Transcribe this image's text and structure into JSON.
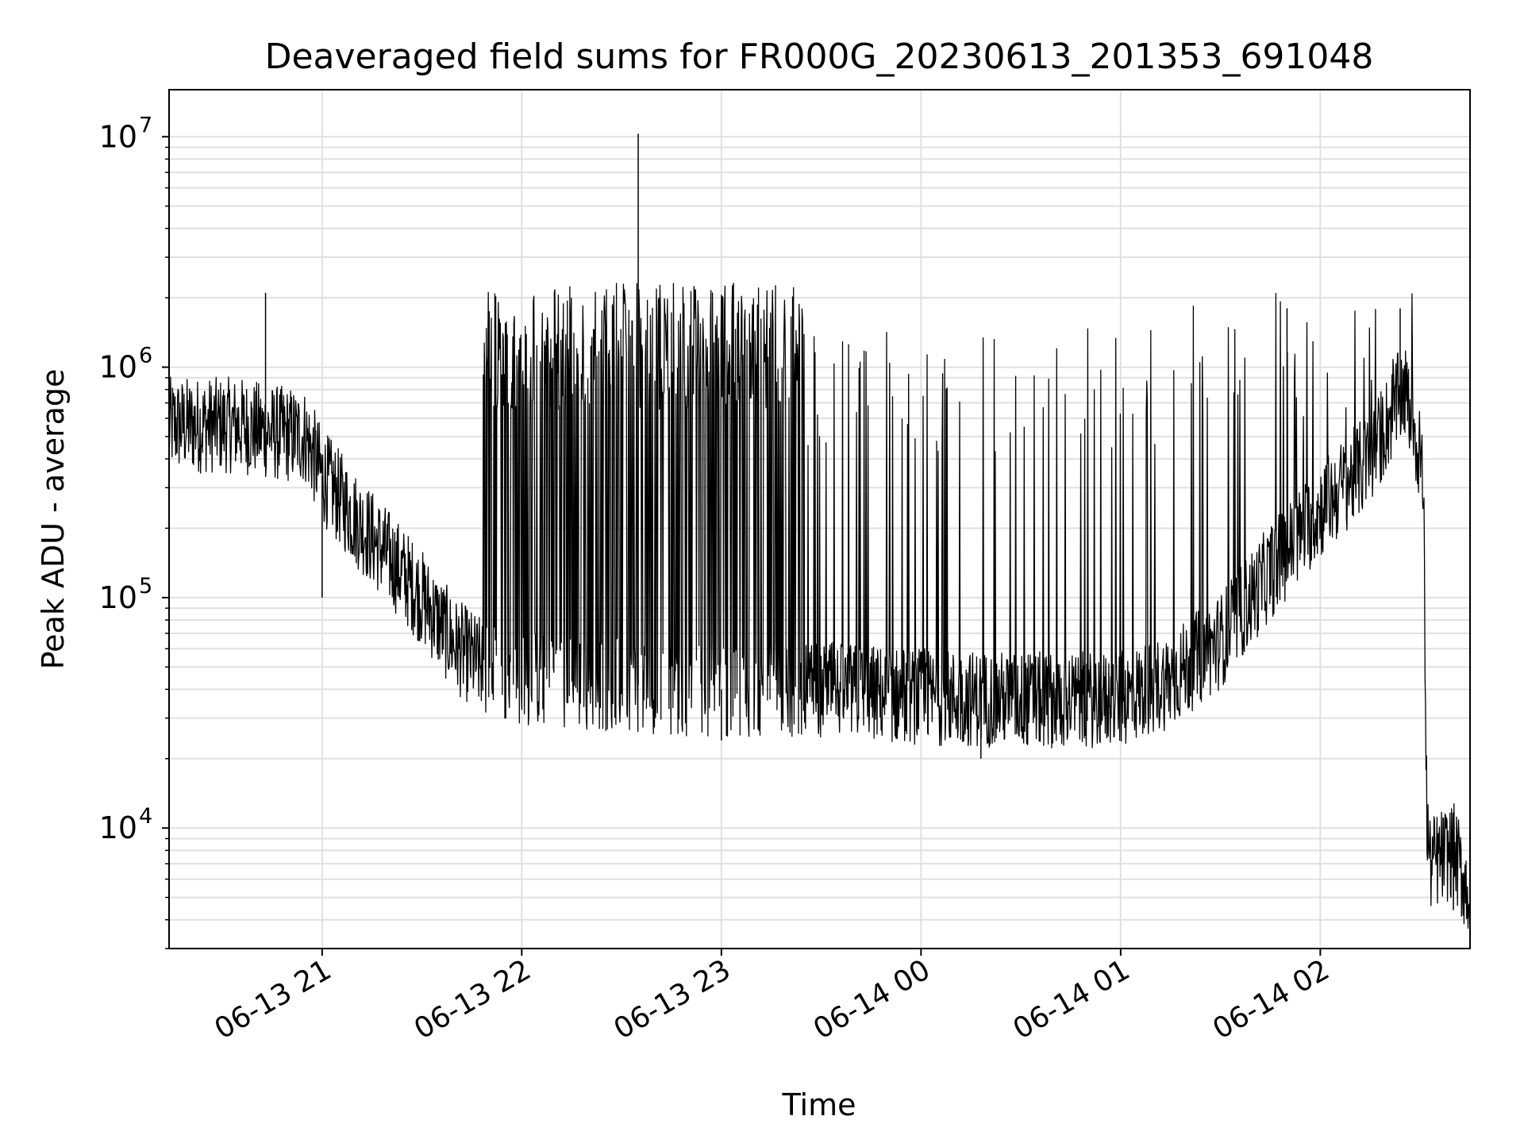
{
  "chart_data": {
    "type": "line",
    "title": "Deaveraged field sums for FR000G_20230613_201353_691048",
    "xlabel": "Time",
    "ylabel": "Peak ADU - average",
    "yscale": "log",
    "ylim": [
      3000,
      16000000
    ],
    "xlim": [
      "2023-06-13 20:14",
      "2023-06-14 02:45"
    ],
    "grid": true,
    "line_color": "#000000",
    "grid_color": "#e0e0e0",
    "x_ticks": [
      {
        "t": "2023-06-13 21:00",
        "label": "06-13 21"
      },
      {
        "t": "2023-06-13 22:00",
        "label": "06-13 22"
      },
      {
        "t": "2023-06-13 23:00",
        "label": "06-13 23"
      },
      {
        "t": "2023-06-14 00:00",
        "label": "06-14 00"
      },
      {
        "t": "2023-06-14 01:00",
        "label": "06-14 01"
      },
      {
        "t": "2023-06-14 02:00",
        "label": "06-14 02"
      }
    ],
    "y_ticks": [
      {
        "v": 10000,
        "base": "10",
        "exp": "4"
      },
      {
        "v": 100000,
        "base": "10",
        "exp": "5"
      },
      {
        "v": 1000000,
        "base": "10",
        "exp": "6"
      },
      {
        "v": 10000000,
        "base": "10",
        "exp": "7"
      }
    ],
    "series": [
      {
        "baseline": [
          [
            "2023-06-13 20:14",
            560000
          ],
          [
            "2023-06-13 20:35",
            560000
          ],
          [
            "2023-06-13 20:45",
            520000
          ],
          [
            "2023-06-13 20:55",
            500000
          ],
          [
            "2023-06-13 21:00",
            340000
          ],
          [
            "2023-06-13 21:10",
            220000
          ],
          [
            "2023-06-13 21:20",
            150000
          ],
          [
            "2023-06-13 21:30",
            100000
          ],
          [
            "2023-06-13 21:40",
            62000
          ],
          [
            "2023-06-13 21:50",
            48000
          ],
          [
            "2023-06-13 22:00",
            44000
          ],
          [
            "2023-06-13 22:30",
            42000
          ],
          [
            "2023-06-13 23:00",
            40000
          ],
          [
            "2023-06-13 23:30",
            40000
          ],
          [
            "2023-06-14 00:00",
            37000
          ],
          [
            "2023-06-14 00:30",
            36000
          ],
          [
            "2023-06-14 01:00",
            36000
          ],
          [
            "2023-06-14 01:15",
            44000
          ],
          [
            "2023-06-14 01:30",
            65000
          ],
          [
            "2023-06-14 01:45",
            130000
          ],
          [
            "2023-06-14 02:00",
            240000
          ],
          [
            "2023-06-14 02:15",
            400000
          ],
          [
            "2023-06-14 02:25",
            800000
          ],
          [
            "2023-06-14 02:28",
            600000
          ],
          [
            "2023-06-14 02:31",
            300000
          ],
          [
            "2023-06-14 02:32",
            11000
          ],
          [
            "2023-06-14 02:33",
            7000
          ],
          [
            "2023-06-14 02:40",
            8000
          ],
          [
            "2023-06-14 02:45",
            5000
          ]
        ],
        "spike_ranges": [
          {
            "from": "2023-06-13 21:48",
            "to": "2023-06-13 23:25",
            "peak": 1400000,
            "rate": 0.55
          },
          {
            "from": "2023-06-13 23:25",
            "to": "2023-06-14 01:12",
            "peak": 900000,
            "rate": 0.1
          },
          {
            "from": "2023-06-14 01:12",
            "to": "2023-06-14 02:30",
            "peak": 1300000,
            "rate": 0.05
          }
        ],
        "notable_points": [
          [
            "2023-06-13 22:35",
            10300000
          ],
          [
            "2023-06-13 20:43",
            2100000
          ],
          [
            "2023-06-14 02:24",
            1800000
          ],
          [
            "2023-06-14 01:50",
            1800000
          ],
          [
            "2023-06-13 21:00",
            100000
          ],
          [
            "2023-06-13 23:00",
            24000
          ],
          [
            "2023-06-14 00:18",
            20000
          ],
          [
            "2023-06-14 02:40",
            4400.0
          ]
        ]
      }
    ]
  }
}
